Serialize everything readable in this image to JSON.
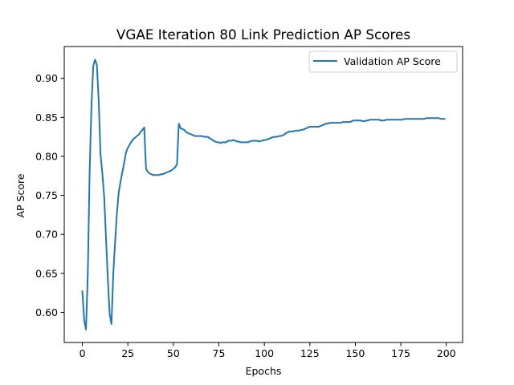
{
  "chart_data": {
    "type": "line",
    "title": "VGAE Iteration 80 Link Prediction AP Scores",
    "xlabel": "Epochs",
    "ylabel": "AP Score",
    "xlim": [
      -9.95,
      208.95
    ],
    "ylim": [
      0.5614,
      0.9408
    ],
    "xticks": [
      0,
      25,
      50,
      75,
      100,
      125,
      150,
      175,
      200
    ],
    "xtick_labels": [
      "0",
      "25",
      "50",
      "75",
      "100",
      "125",
      "150",
      "175",
      "200"
    ],
    "yticks": [
      0.6,
      0.65,
      0.7,
      0.75,
      0.8,
      0.85,
      0.9
    ],
    "ytick_labels": [
      "0.60",
      "0.65",
      "0.70",
      "0.75",
      "0.80",
      "0.85",
      "0.90"
    ],
    "grid": false,
    "legend_position": "top-right",
    "series": [
      {
        "name": "Validation AP Score",
        "color": "#1f77b4",
        "points": [
          [
            0,
            0.627
          ],
          [
            1,
            0.59
          ],
          [
            2,
            0.578
          ],
          [
            3,
            0.65
          ],
          [
            4,
            0.78
          ],
          [
            5,
            0.865
          ],
          [
            6,
            0.916
          ],
          [
            7,
            0.924
          ],
          [
            8,
            0.917
          ],
          [
            9,
            0.87
          ],
          [
            10,
            0.802
          ],
          [
            11,
            0.778
          ],
          [
            12,
            0.748
          ],
          [
            13,
            0.695
          ],
          [
            14,
            0.643
          ],
          [
            15,
            0.598
          ],
          [
            16,
            0.585
          ],
          [
            17,
            0.65
          ],
          [
            18,
            0.69
          ],
          [
            19,
            0.728
          ],
          [
            20,
            0.754
          ],
          [
            21,
            0.768
          ],
          [
            22,
            0.78
          ],
          [
            23,
            0.792
          ],
          [
            24,
            0.805
          ],
          [
            25,
            0.811
          ],
          [
            26,
            0.815
          ],
          [
            27,
            0.819
          ],
          [
            28,
            0.822
          ],
          [
            29,
            0.824
          ],
          [
            30,
            0.826
          ],
          [
            31,
            0.828
          ],
          [
            32,
            0.831
          ],
          [
            33,
            0.834
          ],
          [
            34,
            0.837
          ],
          [
            35,
            0.784
          ],
          [
            36,
            0.78
          ],
          [
            37,
            0.778
          ],
          [
            38,
            0.777
          ],
          [
            39,
            0.776
          ],
          [
            40,
            0.776
          ],
          [
            41,
            0.776
          ],
          [
            42,
            0.776
          ],
          [
            43,
            0.777
          ],
          [
            44,
            0.777
          ],
          [
            45,
            0.778
          ],
          [
            46,
            0.779
          ],
          [
            47,
            0.78
          ],
          [
            48,
            0.781
          ],
          [
            49,
            0.782
          ],
          [
            50,
            0.784
          ],
          [
            51,
            0.786
          ],
          [
            52,
            0.79
          ],
          [
            53,
            0.842
          ],
          [
            54,
            0.836
          ],
          [
            55,
            0.835
          ],
          [
            56,
            0.834
          ],
          [
            57,
            0.831
          ],
          [
            58,
            0.83
          ],
          [
            59,
            0.829
          ],
          [
            60,
            0.828
          ],
          [
            61,
            0.827
          ],
          [
            62,
            0.826
          ],
          [
            63,
            0.826
          ],
          [
            64,
            0.826
          ],
          [
            65,
            0.826
          ],
          [
            66,
            0.826
          ],
          [
            67,
            0.825
          ],
          [
            68,
            0.825
          ],
          [
            69,
            0.825
          ],
          [
            70,
            0.823
          ],
          [
            71,
            0.822
          ],
          [
            72,
            0.82
          ],
          [
            73,
            0.819
          ],
          [
            74,
            0.818
          ],
          [
            75,
            0.818
          ],
          [
            76,
            0.817
          ],
          [
            77,
            0.818
          ],
          [
            78,
            0.818
          ],
          [
            79,
            0.818
          ],
          [
            80,
            0.82
          ],
          [
            81,
            0.82
          ],
          [
            82,
            0.82
          ],
          [
            83,
            0.821
          ],
          [
            84,
            0.82
          ],
          [
            85,
            0.819
          ],
          [
            86,
            0.819
          ],
          [
            87,
            0.818
          ],
          [
            88,
            0.818
          ],
          [
            89,
            0.818
          ],
          [
            90,
            0.818
          ],
          [
            91,
            0.818
          ],
          [
            92,
            0.819
          ],
          [
            93,
            0.82
          ],
          [
            94,
            0.82
          ],
          [
            95,
            0.82
          ],
          [
            96,
            0.82
          ],
          [
            97,
            0.819
          ],
          [
            98,
            0.82
          ],
          [
            99,
            0.82
          ],
          [
            100,
            0.821
          ],
          [
            101,
            0.821
          ],
          [
            102,
            0.822
          ],
          [
            103,
            0.823
          ],
          [
            104,
            0.824
          ],
          [
            105,
            0.825
          ],
          [
            106,
            0.825
          ],
          [
            107,
            0.825
          ],
          [
            108,
            0.826
          ],
          [
            109,
            0.826
          ],
          [
            110,
            0.827
          ],
          [
            111,
            0.828
          ],
          [
            112,
            0.83
          ],
          [
            113,
            0.831
          ],
          [
            114,
            0.832
          ],
          [
            115,
            0.832
          ],
          [
            116,
            0.832
          ],
          [
            117,
            0.833
          ],
          [
            118,
            0.833
          ],
          [
            119,
            0.833
          ],
          [
            120,
            0.834
          ],
          [
            121,
            0.834
          ],
          [
            122,
            0.835
          ],
          [
            123,
            0.836
          ],
          [
            124,
            0.837
          ],
          [
            125,
            0.838
          ],
          [
            126,
            0.838
          ],
          [
            127,
            0.838
          ],
          [
            128,
            0.838
          ],
          [
            129,
            0.838
          ],
          [
            130,
            0.838
          ],
          [
            131,
            0.839
          ],
          [
            132,
            0.84
          ],
          [
            133,
            0.841
          ],
          [
            134,
            0.842
          ],
          [
            135,
            0.842
          ],
          [
            136,
            0.843
          ],
          [
            137,
            0.843
          ],
          [
            138,
            0.843
          ],
          [
            139,
            0.843
          ],
          [
            140,
            0.843
          ],
          [
            141,
            0.843
          ],
          [
            142,
            0.843
          ],
          [
            143,
            0.844
          ],
          [
            144,
            0.844
          ],
          [
            145,
            0.844
          ],
          [
            146,
            0.844
          ],
          [
            147,
            0.844
          ],
          [
            148,
            0.845
          ],
          [
            149,
            0.846
          ],
          [
            150,
            0.846
          ],
          [
            151,
            0.846
          ],
          [
            152,
            0.846
          ],
          [
            153,
            0.846
          ],
          [
            154,
            0.845
          ],
          [
            155,
            0.845
          ],
          [
            156,
            0.846
          ],
          [
            157,
            0.846
          ],
          [
            158,
            0.847
          ],
          [
            159,
            0.847
          ],
          [
            160,
            0.847
          ],
          [
            161,
            0.847
          ],
          [
            162,
            0.847
          ],
          [
            163,
            0.847
          ],
          [
            164,
            0.846
          ],
          [
            165,
            0.846
          ],
          [
            166,
            0.846
          ],
          [
            167,
            0.847
          ],
          [
            168,
            0.847
          ],
          [
            169,
            0.847
          ],
          [
            170,
            0.847
          ],
          [
            171,
            0.847
          ],
          [
            172,
            0.847
          ],
          [
            173,
            0.847
          ],
          [
            174,
            0.847
          ],
          [
            175,
            0.847
          ],
          [
            176,
            0.847
          ],
          [
            177,
            0.848
          ],
          [
            178,
            0.848
          ],
          [
            179,
            0.848
          ],
          [
            180,
            0.848
          ],
          [
            181,
            0.848
          ],
          [
            182,
            0.848
          ],
          [
            183,
            0.848
          ],
          [
            184,
            0.848
          ],
          [
            185,
            0.848
          ],
          [
            186,
            0.848
          ],
          [
            187,
            0.848
          ],
          [
            188,
            0.848
          ],
          [
            189,
            0.849
          ],
          [
            190,
            0.849
          ],
          [
            191,
            0.849
          ],
          [
            192,
            0.849
          ],
          [
            193,
            0.849
          ],
          [
            194,
            0.849
          ],
          [
            195,
            0.849
          ],
          [
            196,
            0.849
          ],
          [
            197,
            0.848
          ],
          [
            198,
            0.848
          ],
          [
            199,
            0.848
          ]
        ]
      }
    ]
  }
}
